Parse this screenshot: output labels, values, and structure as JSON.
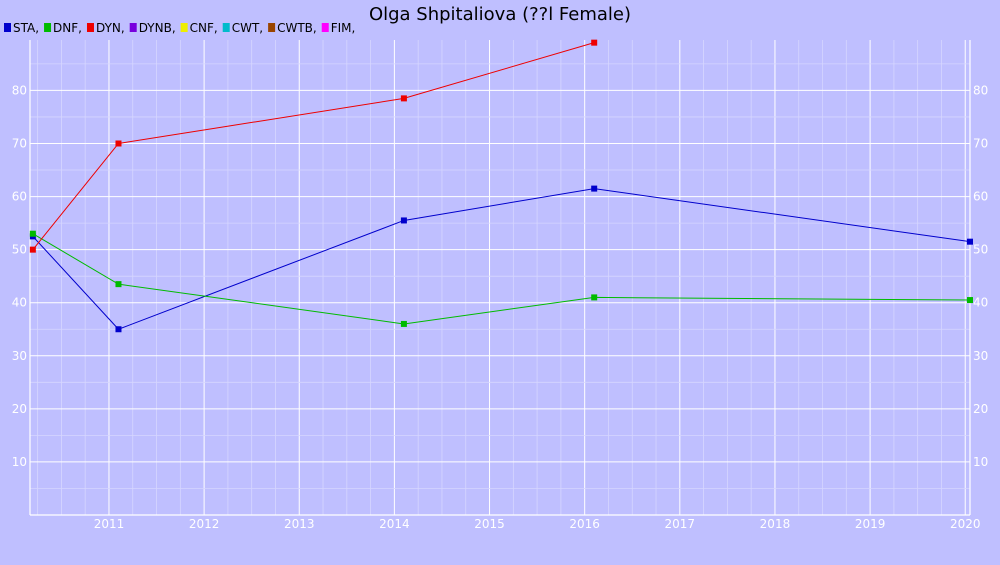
{
  "chart_data": {
    "type": "line",
    "title": "Olga Shpitaliova (??l Female)",
    "legend": {
      "placement": "top-left",
      "entries": [
        {
          "label": "STA,",
          "color": "#0000cc"
        },
        {
          "label": "DNF,",
          "color": "#00bb00"
        },
        {
          "label": "DYN,",
          "color": "#ee0000"
        },
        {
          "label": "DYNB,",
          "color": "#7700dd"
        },
        {
          "label": "CNF,",
          "color": "#eeee00"
        },
        {
          "label": "CWT,",
          "color": "#00bbcc"
        },
        {
          "label": "CWTB,",
          "color": "#994400"
        },
        {
          "label": "FIM,",
          "color": "#ff00ff"
        }
      ]
    },
    "x_ticks": [
      "2011",
      "2012",
      "2013",
      "2014",
      "2015",
      "2016",
      "2017",
      "2018",
      "2019",
      "2020"
    ],
    "y_ticks": [
      "10",
      "20",
      "30",
      "40",
      "50",
      "60",
      "70",
      "80"
    ],
    "xlim": [
      2010.17,
      2020.05
    ],
    "ylim": [
      0,
      89.5
    ],
    "grid": true,
    "series": [
      {
        "name": "STA",
        "color": "#0000cc",
        "points": [
          [
            2010.2,
            52.5
          ],
          [
            2011.1,
            35.0
          ],
          [
            2014.1,
            55.5
          ],
          [
            2016.1,
            61.5
          ],
          [
            2020.05,
            51.5
          ]
        ]
      },
      {
        "name": "DNF",
        "color": "#00bb00",
        "points": [
          [
            2010.2,
            53.0
          ],
          [
            2011.1,
            43.5
          ],
          [
            2014.1,
            36.0
          ],
          [
            2016.1,
            41.0
          ],
          [
            2020.05,
            40.5
          ]
        ]
      },
      {
        "name": "DYN",
        "color": "#ee0000",
        "points": [
          [
            2010.2,
            50.0
          ],
          [
            2011.1,
            70.0
          ],
          [
            2014.1,
            78.5
          ],
          [
            2016.1,
            89.0
          ]
        ]
      }
    ]
  }
}
